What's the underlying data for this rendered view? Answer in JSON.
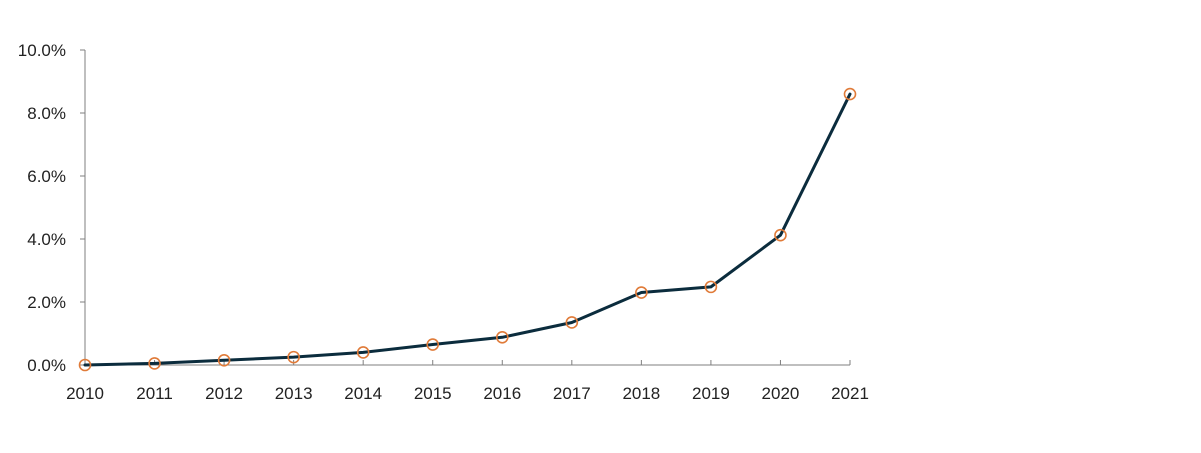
{
  "chart_data": {
    "type": "line",
    "title": "",
    "xlabel": "",
    "ylabel": "",
    "categories": [
      "2010",
      "2011",
      "2012",
      "2013",
      "2014",
      "2015",
      "2016",
      "2017",
      "2018",
      "2019",
      "2020",
      "2021"
    ],
    "series": [
      {
        "values": [
          0.0,
          0.05,
          0.15,
          0.25,
          0.4,
          0.65,
          0.88,
          1.35,
          2.3,
          2.48,
          4.12,
          8.6
        ]
      }
    ],
    "ylim": [
      0,
      10
    ],
    "yticks": [
      {
        "value": 0,
        "label": "0.0%"
      },
      {
        "value": 2,
        "label": "2.0%"
      },
      {
        "value": 4,
        "label": "4.0%"
      },
      {
        "value": 6,
        "label": "6.0%"
      },
      {
        "value": 8,
        "label": "8.0%"
      },
      {
        "value": 10,
        "label": "10.0%"
      }
    ],
    "grid": false,
    "legend": "none",
    "colors": {
      "line": "#0b2c3d",
      "marker": "#e07b39",
      "axis": "#7f7f7f"
    }
  }
}
